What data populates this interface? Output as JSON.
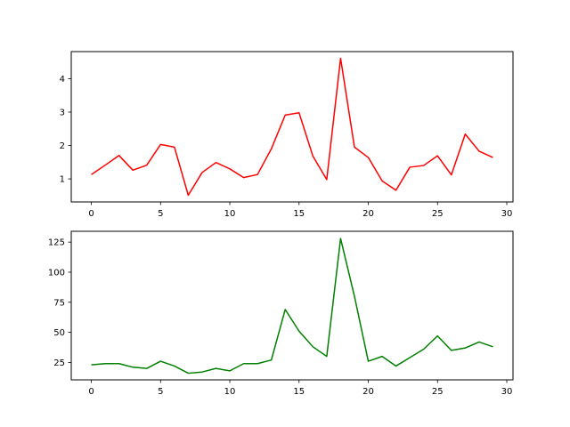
{
  "chart_data": [
    {
      "type": "line",
      "title": "",
      "xlabel": "",
      "ylabel": "",
      "xlim": [
        -1.45,
        30.45
      ],
      "ylim": [
        0.31,
        4.81
      ],
      "grid": false,
      "xticks": [
        0,
        5,
        10,
        15,
        20,
        25,
        30
      ],
      "xtick_labels": [
        "0",
        "5",
        "10",
        "15",
        "20",
        "25",
        "30"
      ],
      "yticks": [
        1,
        2,
        3,
        4
      ],
      "ytick_labels": [
        "1",
        "2",
        "3",
        "4"
      ],
      "series": [
        {
          "color": "#ff0000",
          "x": [
            0,
            1,
            2,
            3,
            4,
            5,
            6,
            7,
            8,
            9,
            10,
            11,
            12,
            13,
            14,
            15,
            16,
            17,
            18,
            19,
            20,
            21,
            22,
            23,
            24,
            25,
            26,
            27,
            28,
            29
          ],
          "y": [
            1.13,
            1.41,
            1.7,
            1.26,
            1.41,
            2.03,
            1.95,
            0.51,
            1.19,
            1.49,
            1.3,
            1.04,
            1.13,
            1.9,
            2.91,
            2.98,
            1.68,
            0.98,
            4.61,
            1.95,
            1.64,
            0.94,
            0.66,
            1.35,
            1.4,
            1.69,
            1.12,
            2.34,
            1.83,
            1.64
          ]
        }
      ]
    },
    {
      "type": "line",
      "title": "",
      "xlabel": "",
      "ylabel": "",
      "xlim": [
        -1.45,
        30.45
      ],
      "ylim": [
        10.5,
        134
      ],
      "grid": false,
      "xticks": [
        0,
        5,
        10,
        15,
        20,
        25,
        30
      ],
      "xtick_labels": [
        "0",
        "5",
        "10",
        "15",
        "20",
        "25",
        "30"
      ],
      "yticks": [
        25,
        50,
        75,
        100,
        125
      ],
      "ytick_labels": [
        "25",
        "50",
        "75",
        "100",
        "125"
      ],
      "series": [
        {
          "color": "#008000",
          "x": [
            0,
            1,
            2,
            3,
            4,
            5,
            6,
            7,
            8,
            9,
            10,
            11,
            12,
            13,
            14,
            15,
            16,
            17,
            18,
            19,
            20,
            21,
            22,
            23,
            24,
            25,
            26,
            27,
            28,
            29
          ],
          "y": [
            23,
            24,
            24,
            21,
            20,
            26,
            22,
            16,
            17,
            20,
            18,
            24,
            24,
            27,
            69,
            51,
            38,
            30,
            128,
            80,
            26,
            30,
            22,
            29,
            36,
            47,
            35,
            37,
            42,
            38
          ]
        }
      ]
    }
  ]
}
